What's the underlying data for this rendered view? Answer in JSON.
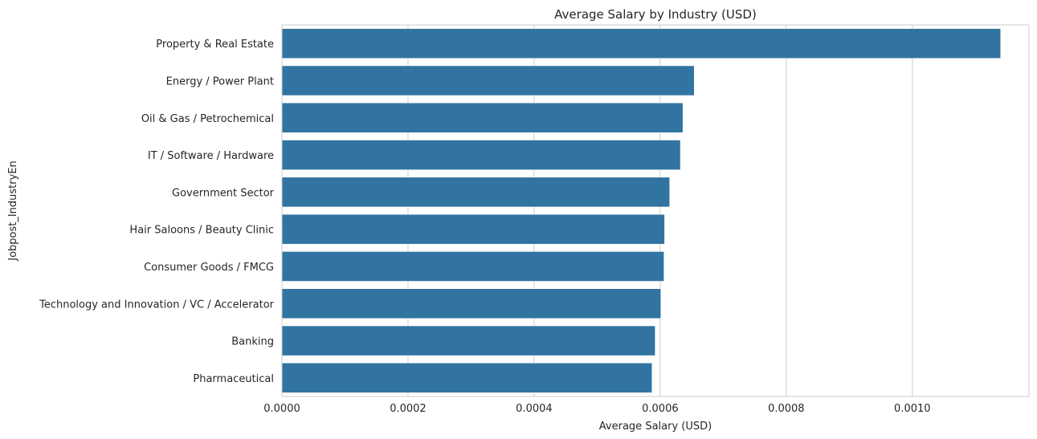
{
  "chart_data": {
    "type": "bar",
    "orientation": "horizontal",
    "title": "Average Salary by Industry (USD)",
    "xlabel": "Average Salary (USD)",
    "ylabel": "Jobpost_IndustryEn",
    "categories": [
      "Property & Real Estate",
      "Energy / Power Plant",
      "Oil & Gas / Petrochemical",
      "IT / Software / Hardware",
      "Government Sector",
      "Hair Saloons / Beauty Clinic",
      "Consumer Goods / FMCG",
      "Technology and Innovation / VC / Accelerator",
      "Banking",
      "Pharmaceutical"
    ],
    "values": [
      0.00114,
      0.000654,
      0.000636,
      0.000632,
      0.000615,
      0.000607,
      0.000606,
      0.000601,
      0.000592,
      0.000587
    ],
    "xlim": [
      0,
      0.001185
    ],
    "xticks": [
      0,
      0.0002,
      0.0004,
      0.0006,
      0.0008,
      0.001
    ],
    "xtick_labels": [
      "0.0000",
      "0.0002",
      "0.0004",
      "0.0006",
      "0.0008",
      "0.0010"
    ],
    "grid": true,
    "bar_color": "#3274a1",
    "grid_color": "#cccccc"
  }
}
